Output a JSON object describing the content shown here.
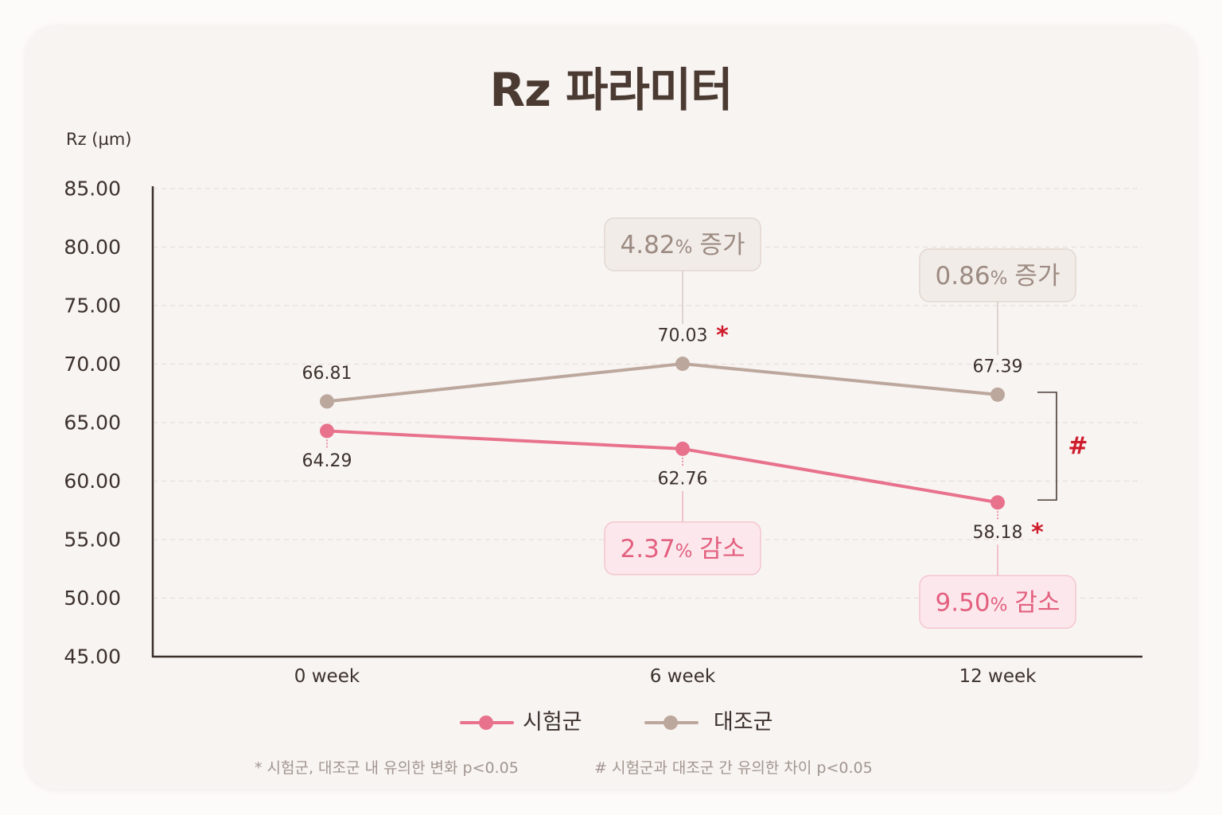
{
  "chart_data": {
    "type": "line",
    "title": "Rz 파라미터",
    "ylabel": "Rz (µm)",
    "categories": [
      "0 week",
      "6 week",
      "12 week"
    ],
    "ylim": [
      45,
      85
    ],
    "yticks": [
      "85.00",
      "80.00",
      "75.00",
      "70.00",
      "65.00",
      "60.00",
      "55.00",
      "50.00",
      "45.00"
    ],
    "grid": true,
    "legend_position": "bottom",
    "series": [
      {
        "name": "시험군",
        "color": "#e8718c",
        "values": [
          64.29,
          62.76,
          58.18
        ],
        "data_labels": [
          "64.29",
          "62.76",
          "58.18"
        ],
        "markers": [
          "",
          "",
          "*"
        ]
      },
      {
        "name": "대조군",
        "color": "#bca79c",
        "values": [
          66.81,
          70.03,
          67.39
        ],
        "data_labels": [
          "66.81",
          "70.03",
          "67.39"
        ],
        "markers": [
          "",
          "*",
          ""
        ]
      }
    ],
    "change_callouts": [
      {
        "series": "대조군",
        "category": "6 week",
        "value": "4.82",
        "unit": "%",
        "text": "증가"
      },
      {
        "series": "대조군",
        "category": "12 week",
        "value": "0.86",
        "unit": "%",
        "text": "증가"
      },
      {
        "series": "시험군",
        "category": "6 week",
        "value": "2.37",
        "unit": "%",
        "text": "감소"
      },
      {
        "series": "시험군",
        "category": "12 week",
        "value": "9.50",
        "unit": "%",
        "text": "감소"
      }
    ],
    "group_difference": {
      "category": "12 week",
      "marker": "#"
    },
    "footnotes": [
      "* 시험군, 대조군 내 유의한 변화 p<0.05",
      "# 시험군과 대조군 간 유의한 차이 p<0.05"
    ]
  },
  "colors": {
    "significance": "#cf1b2b"
  }
}
